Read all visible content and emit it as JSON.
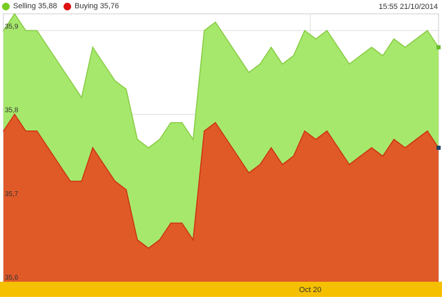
{
  "legend": {
    "selling_label": "Selling 35,88",
    "buying_label": "Buying 35,76",
    "selling_color": "#77cc22",
    "buying_color": "#dd1111"
  },
  "timestamp": "15:55 21/10/2014",
  "colors": {
    "selling_fill": "#a6e86c",
    "selling_line": "#88cc44",
    "buying_fill": "#e05a28",
    "buying_line": "#cc3311",
    "xaxis_band": "#f5c000",
    "grid": "#dddddd"
  },
  "chart_data": {
    "type": "area",
    "ylim": [
      35.6,
      35.92
    ],
    "y_ticks": [
      {
        "value": 35.9,
        "label": "35,9"
      },
      {
        "value": 35.8,
        "label": "35,8"
      },
      {
        "value": 35.7,
        "label": "35,7"
      },
      {
        "value": 35.6,
        "label": "35,6"
      }
    ],
    "x_ticks": [
      {
        "index": 27.5,
        "label": "Oct 20"
      }
    ],
    "series": [
      {
        "name": "Selling 35,88",
        "values": [
          35.9,
          35.92,
          35.9,
          35.9,
          35.88,
          35.86,
          35.84,
          35.82,
          35.88,
          35.86,
          35.84,
          35.83,
          35.77,
          35.76,
          35.77,
          35.79,
          35.79,
          35.77,
          35.9,
          35.91,
          35.89,
          35.87,
          35.85,
          35.86,
          35.88,
          35.86,
          35.87,
          35.9,
          35.89,
          35.9,
          35.88,
          35.86,
          35.87,
          35.88,
          35.87,
          35.89,
          35.88,
          35.89,
          35.9,
          35.88
        ]
      },
      {
        "name": "Buying 35,76",
        "values": [
          35.78,
          35.8,
          35.78,
          35.78,
          35.76,
          35.74,
          35.72,
          35.72,
          35.76,
          35.74,
          35.72,
          35.71,
          35.65,
          35.64,
          35.65,
          35.67,
          35.67,
          35.65,
          35.78,
          35.79,
          35.77,
          35.75,
          35.73,
          35.74,
          35.76,
          35.74,
          35.75,
          35.78,
          35.77,
          35.78,
          35.76,
          35.74,
          35.75,
          35.76,
          35.75,
          35.77,
          35.76,
          35.77,
          35.78,
          35.76
        ]
      }
    ]
  }
}
